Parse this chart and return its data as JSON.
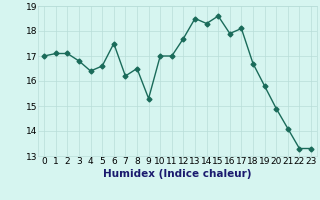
{
  "x": [
    0,
    1,
    2,
    3,
    4,
    5,
    6,
    7,
    8,
    9,
    10,
    11,
    12,
    13,
    14,
    15,
    16,
    17,
    18,
    19,
    20,
    21,
    22,
    23
  ],
  "y": [
    17.0,
    17.1,
    17.1,
    16.8,
    16.4,
    16.6,
    17.5,
    16.2,
    16.5,
    15.3,
    17.0,
    17.0,
    17.7,
    18.5,
    18.3,
    18.6,
    17.9,
    18.1,
    16.7,
    15.8,
    14.9,
    14.1,
    13.3,
    13.3
  ],
  "line_color": "#1a6b5a",
  "marker": "D",
  "marker_size": 2.5,
  "bg_color": "#d6f5f0",
  "grid_color": "#b8ddd8",
  "xlabel": "Humidex (Indice chaleur)",
  "ylim": [
    13,
    19
  ],
  "xlim": [
    -0.5,
    23.5
  ],
  "yticks": [
    13,
    14,
    15,
    16,
    17,
    18,
    19
  ],
  "xticks": [
    0,
    1,
    2,
    3,
    4,
    5,
    6,
    7,
    8,
    9,
    10,
    11,
    12,
    13,
    14,
    15,
    16,
    17,
    18,
    19,
    20,
    21,
    22,
    23
  ],
  "xlabel_fontsize": 7.5,
  "tick_fontsize": 6.5,
  "line_width": 1.0
}
